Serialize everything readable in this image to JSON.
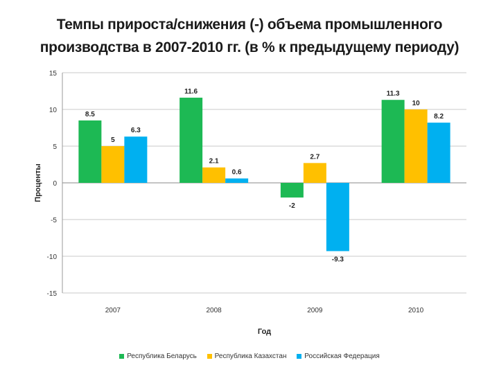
{
  "chart_data": {
    "type": "bar",
    "title_line1": "Темпы прироста/снижения (-) объема промышленного",
    "title_line2": "производства в 2007-2010 гг. (в % к предыдущему периоду)",
    "xlabel": "Год",
    "ylabel": "Проценты",
    "categories": [
      "2007",
      "2008",
      "2009",
      "2010"
    ],
    "ylim": [
      -15,
      15
    ],
    "yticks": [
      15,
      10,
      5,
      0,
      -5,
      -10,
      -15
    ],
    "grid": true,
    "legend_position": "bottom",
    "series": [
      {
        "name": "Республика Беларусь",
        "color": "#1db954",
        "values": [
          8.5,
          11.6,
          -2,
          11.3
        ],
        "labels": [
          "8.5",
          "11.6",
          "-2",
          "11.3"
        ]
      },
      {
        "name": "Республика Казахстан",
        "color": "#ffc000",
        "values": [
          5,
          2.1,
          2.7,
          10
        ],
        "labels": [
          "5",
          "2.1",
          "2.7",
          "10"
        ]
      },
      {
        "name": "Российская Федерация",
        "color": "#00b0f0",
        "values": [
          6.3,
          0.6,
          -9.3,
          8.2
        ],
        "labels": [
          "6.3",
          "0.6",
          "-9.3",
          "8.2"
        ]
      }
    ]
  }
}
